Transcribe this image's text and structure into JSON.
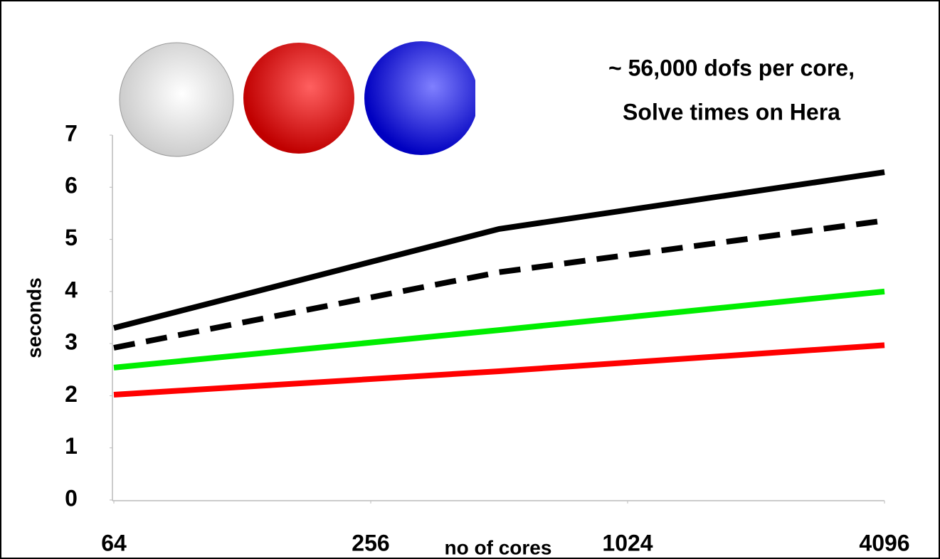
{
  "chart_data": {
    "type": "line",
    "title": [
      "~ 56,000 dofs per core,",
      "Solve times on Hera"
    ],
    "x_label": "no of cores",
    "y_label": "seconds",
    "x": [
      64,
      512,
      4096
    ],
    "xlim": [
      64,
      4096
    ],
    "xticks": [
      64,
      256,
      1024,
      4096
    ],
    "xscale": "log2",
    "ylim": [
      0,
      7
    ],
    "yticks": [
      0,
      1,
      2,
      3,
      4,
      5,
      6,
      7
    ],
    "grid": false,
    "series": [
      {
        "color": "#000000",
        "dashed": false,
        "values": [
          3.3,
          5.2,
          6.29
        ]
      },
      {
        "color": "#000000",
        "dashed": true,
        "values": [
          2.92,
          4.37,
          5.36
        ]
      },
      {
        "color": "#00ee00",
        "dashed": false,
        "values": [
          2.54,
          3.26,
          4.0
        ]
      },
      {
        "color": "#ff0000",
        "dashed": false,
        "values": [
          2.02,
          2.47,
          2.97
        ]
      }
    ]
  }
}
